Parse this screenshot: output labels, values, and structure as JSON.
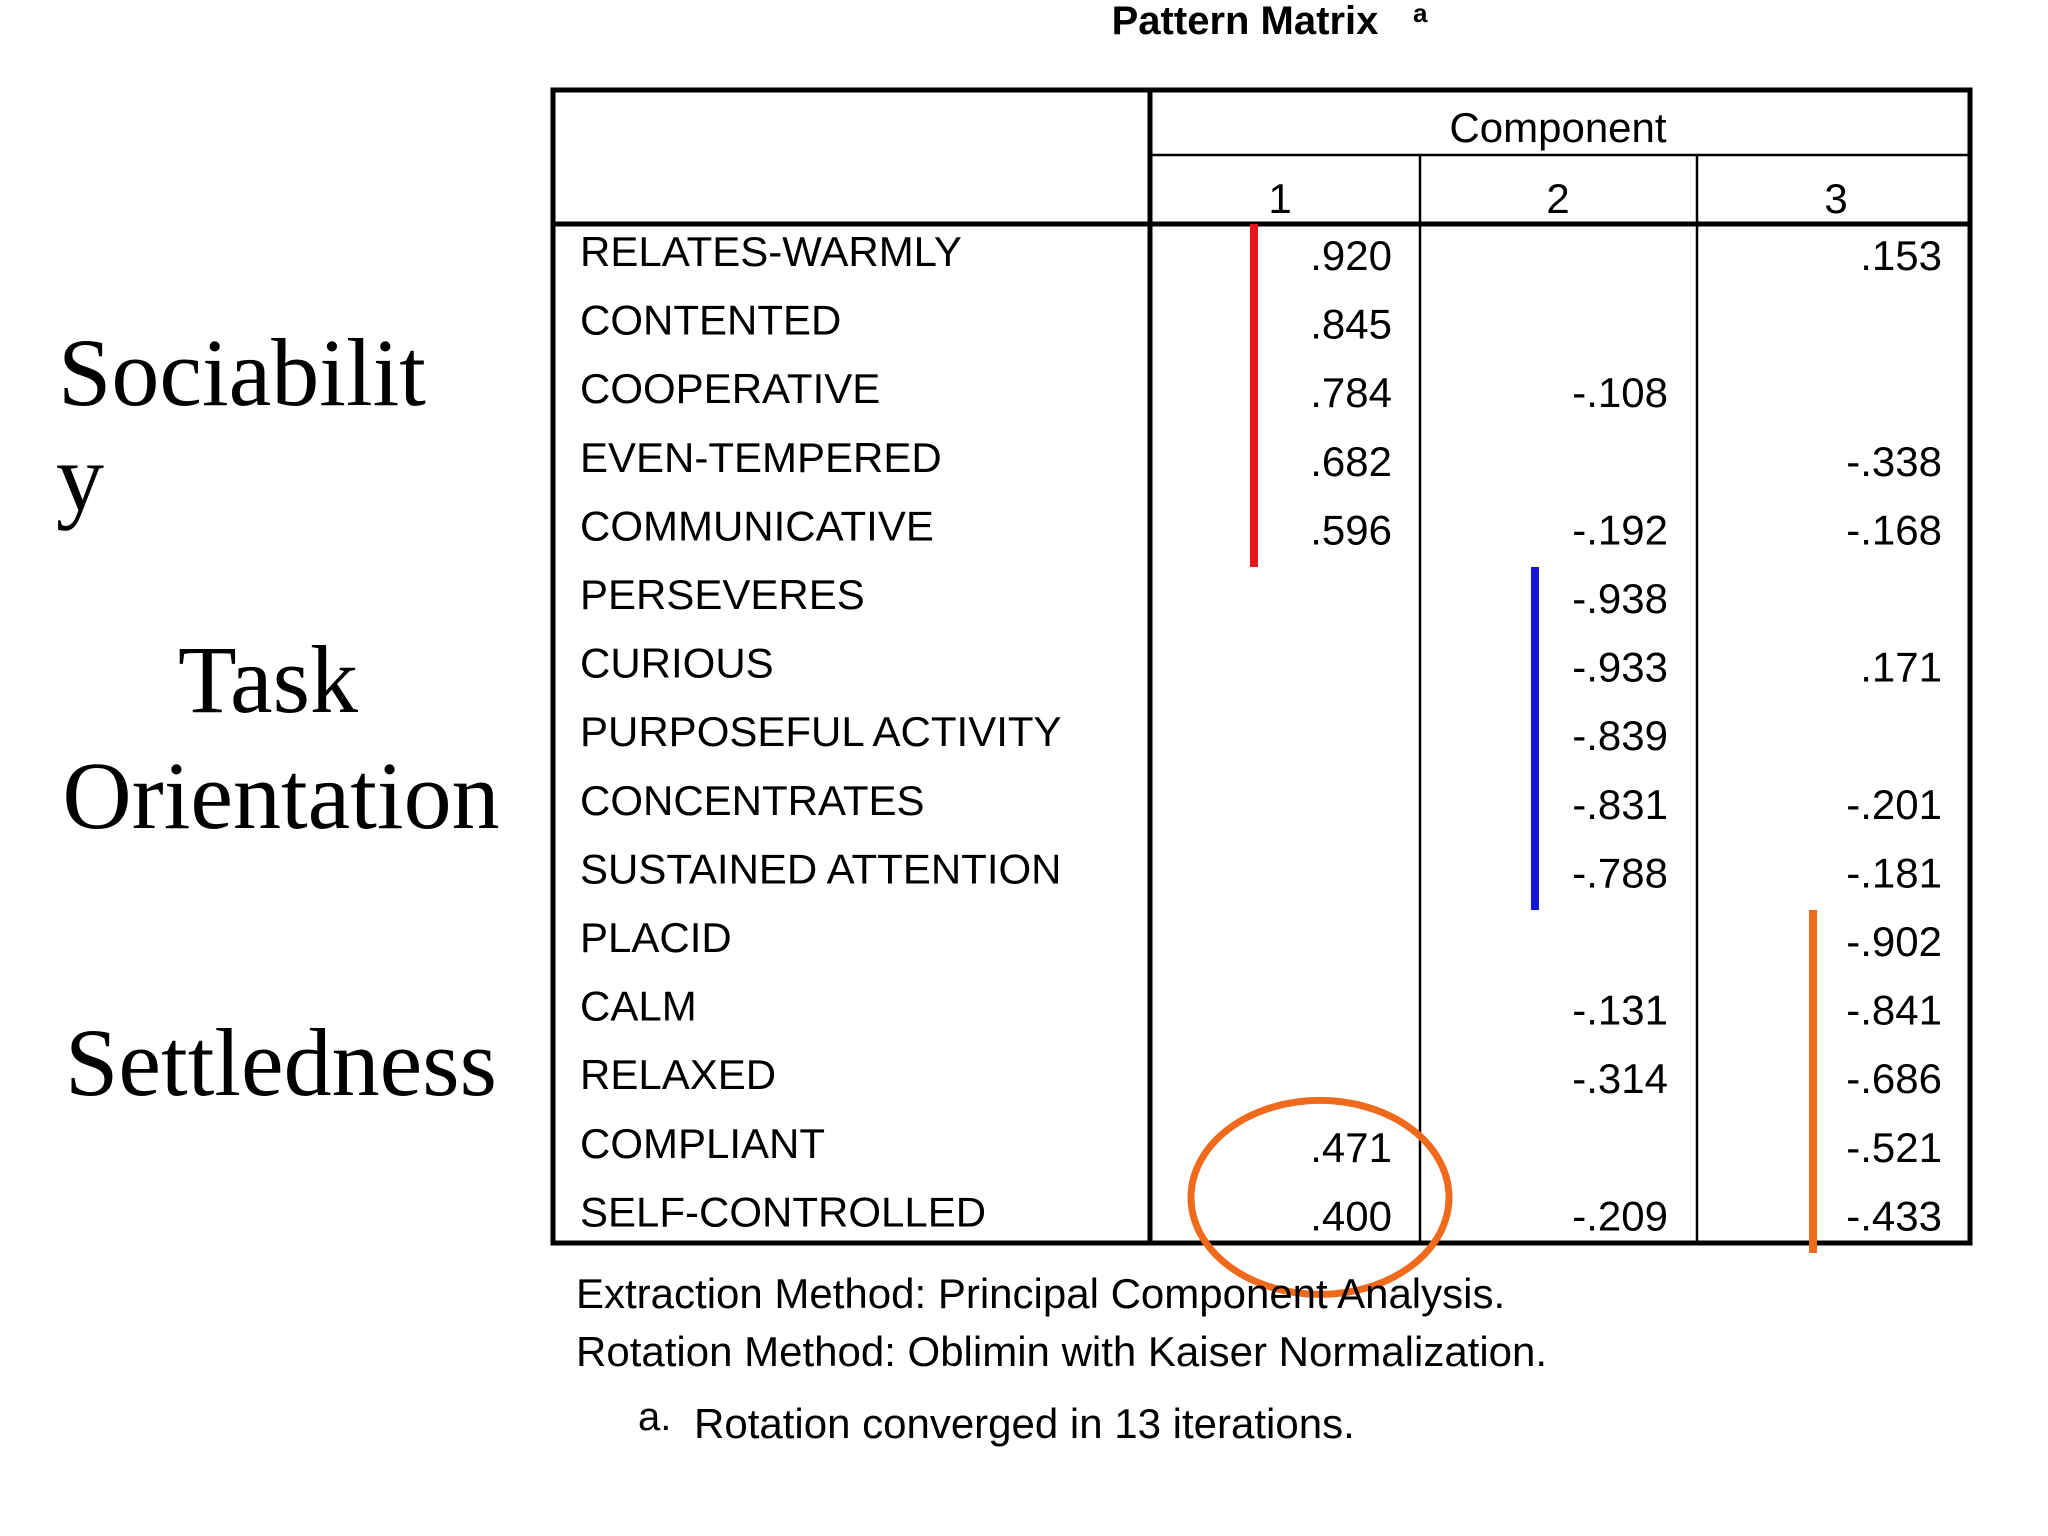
{
  "chart_data": {
    "type": "table",
    "title": "Pattern Matrix",
    "title_footnote_marker": "a",
    "column_group_header": "Component",
    "columns": [
      "1",
      "2",
      "3"
    ],
    "rows": [
      {
        "label": "RELATES-WARMLY",
        "values": [
          ".920",
          "",
          ".153"
        ]
      },
      {
        "label": "CONTENTED",
        "values": [
          ".845",
          "",
          ""
        ]
      },
      {
        "label": "COOPERATIVE",
        "values": [
          ".784",
          "-.108",
          ""
        ]
      },
      {
        "label": "EVEN-TEMPERED",
        "values": [
          ".682",
          "",
          "-.338"
        ]
      },
      {
        "label": "COMMUNICATIVE",
        "values": [
          ".596",
          "-.192",
          "-.168"
        ]
      },
      {
        "label": "PERSEVERES",
        "values": [
          "",
          "-.938",
          ""
        ]
      },
      {
        "label": "CURIOUS",
        "values": [
          "",
          "-.933",
          ".171"
        ]
      },
      {
        "label": "PURPOSEFUL ACTIVITY",
        "values": [
          "",
          "-.839",
          ""
        ]
      },
      {
        "label": "CONCENTRATES",
        "values": [
          "",
          "-.831",
          "-.201"
        ]
      },
      {
        "label": "SUSTAINED ATTENTION",
        "values": [
          "",
          "-.788",
          "-.181"
        ]
      },
      {
        "label": "PLACID",
        "values": [
          "",
          "",
          "-.902"
        ]
      },
      {
        "label": "CALM",
        "values": [
          "",
          "-.131",
          "-.841"
        ]
      },
      {
        "label": "RELAXED",
        "values": [
          "",
          "-.314",
          "-.686"
        ]
      },
      {
        "label": "COMPLIANT",
        "values": [
          ".471",
          "",
          "-.521"
        ]
      },
      {
        "label": "SELF-CONTROLLED",
        "values": [
          ".400",
          "-.209",
          "-.433"
        ]
      }
    ],
    "footnotes": [
      "Extraction Method: Principal Component Analysis.",
      "Rotation Method: Oblimin with Kaiser Normalization."
    ],
    "footnote_a_marker": "a.",
    "footnote_a_text": "Rotation converged in 13 iterations.",
    "factor_labels": {
      "sociability_line1": "Sociabilit",
      "sociability_line2": "y",
      "task_line1": "Task",
      "task_line2": "Orientation",
      "settledness": "Settledness"
    },
    "factor_groups": [
      {
        "column": 1,
        "first_row": 0,
        "last_row": 4,
        "color": "#e8151b"
      },
      {
        "column": 2,
        "first_row": 5,
        "last_row": 9,
        "color": "#1414d6"
      },
      {
        "column": 3,
        "first_row": 10,
        "last_row": 14,
        "color": "#f06a1c"
      }
    ],
    "highlight": {
      "column": 1,
      "first_row": 13,
      "last_row": 14,
      "color": "#f06a1c"
    }
  }
}
